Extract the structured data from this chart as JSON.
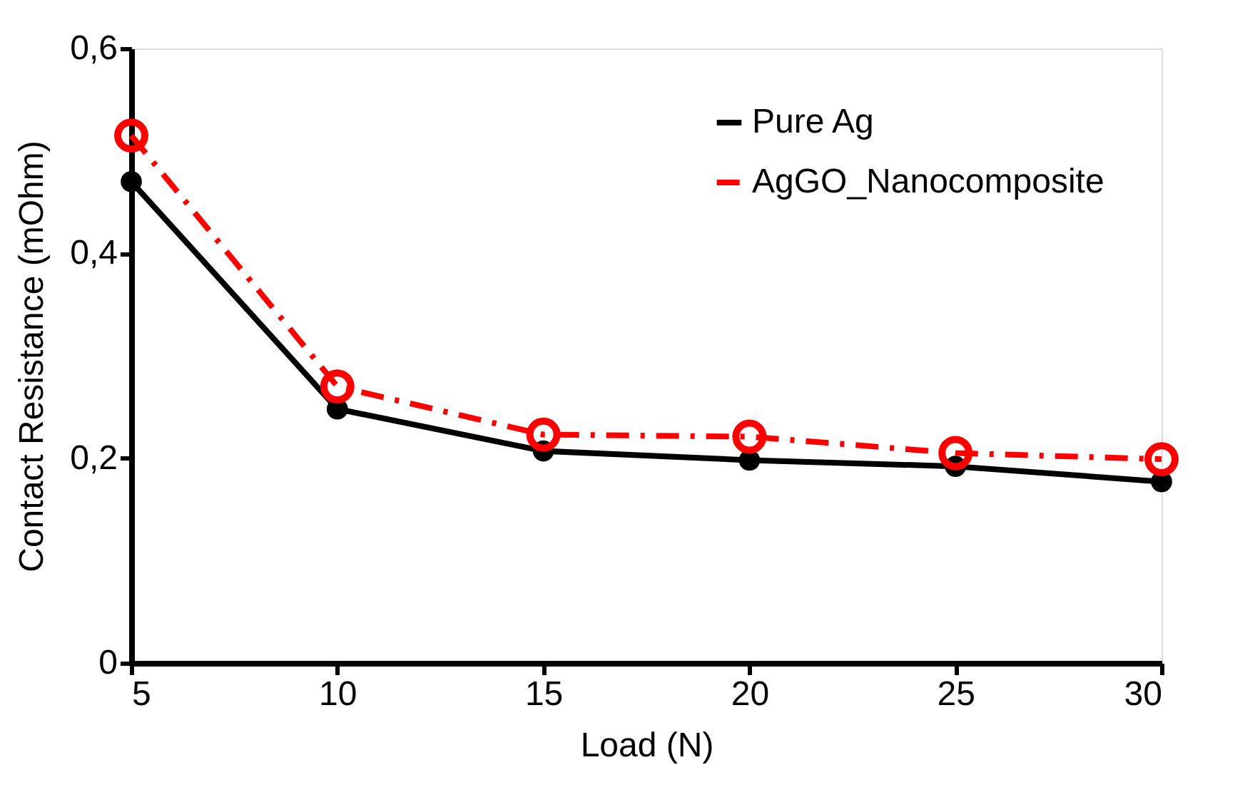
{
  "chart_data": {
    "type": "line",
    "x": [
      5,
      10,
      15,
      20,
      25,
      30
    ],
    "series": [
      {
        "name": "Pure Ag",
        "color": "#000000",
        "values": [
          0.47,
          0.248,
          0.207,
          0.198,
          0.192,
          0.177
        ],
        "line_style": "solid",
        "marker": "circle"
      },
      {
        "name": "AgGO_Nanocomposite",
        "color": "#ff0000",
        "values": [
          0.515,
          0.27,
          0.223,
          0.221,
          0.205,
          0.199
        ],
        "line_style": "dashed",
        "marker": "circle"
      }
    ],
    "xlabel": "Load (N)",
    "ylabel": "Contact Resistance (mOhm)",
    "xlim": [
      5,
      30
    ],
    "xticks": [
      5,
      10,
      15,
      20,
      25,
      30
    ],
    "ylim": [
      0,
      0.6
    ],
    "yticks": [
      {
        "value": 0,
        "label": "0"
      },
      {
        "value": 0.2,
        "label": "0,2"
      },
      {
        "value": 0.4,
        "label": "0,4"
      },
      {
        "value": 0.6,
        "label": "0,6"
      }
    ],
    "grid": false,
    "legend": "top right"
  }
}
